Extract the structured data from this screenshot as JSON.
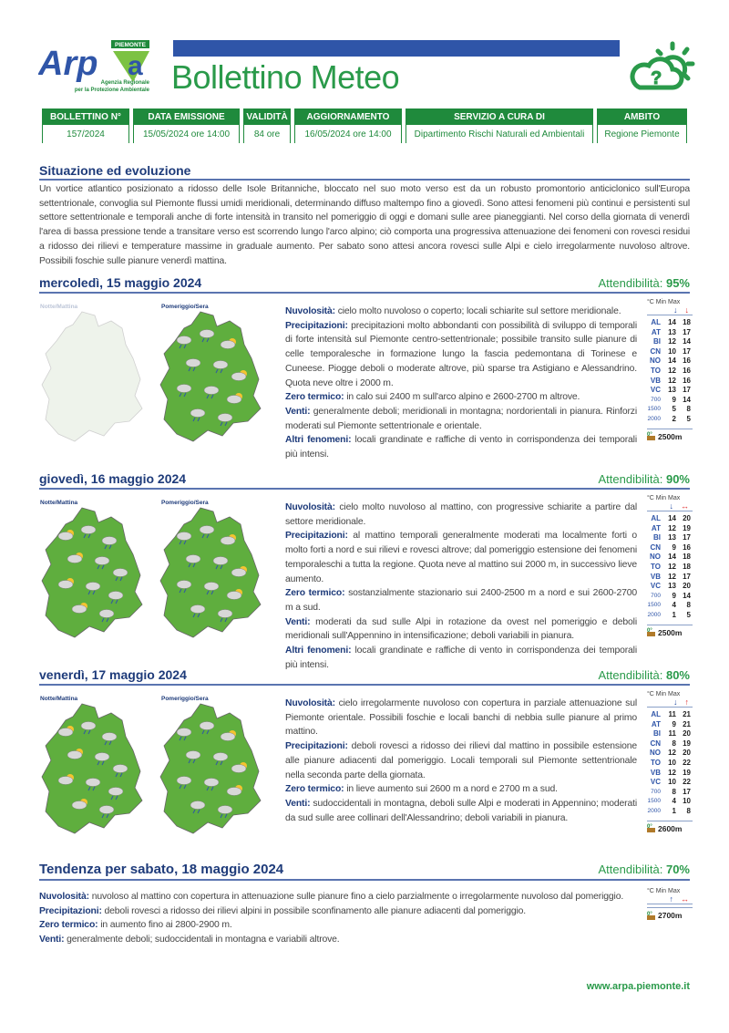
{
  "header": {
    "logo_text": "Arpa",
    "logo_region": "PIEMONTE",
    "logo_sub": "Agenzia Regionale per la Protezione Ambientale",
    "title": "Bollettino Meteo",
    "icon": "cloud-sun-question-icon"
  },
  "info": {
    "headers": [
      "BOLLETTINO N°",
      "DATA EMISSIONE",
      "VALIDITÀ",
      "AGGIORNAMENTO",
      "SERVIZIO A CURA DI",
      "AMBITO"
    ],
    "values": [
      "157/2024",
      "15/05/2024 ore 14:00",
      "84 ore",
      "16/05/2024 ore 14:00",
      "Dipartimento Rischi Naturali ed Ambientali",
      "Regione Piemonte"
    ]
  },
  "situation": {
    "title": "Situazione ed evoluzione",
    "text": "Un vortice atlantico posizionato a ridosso delle Isole Britanniche, bloccato nel suo moto verso est da un robusto promontorio anticiclonico sull'Europa settentrionale, convoglia sul Piemonte flussi umidi meridionali, determinando diffuso maltempo fino a giovedì. Sono attesi fenomeni più continui e persistenti sul settore settentrionale e temporali anche di forte intensità in transito nel pomeriggio di oggi e domani sulle aree pianeggianti. Nel corso della giornata di venerdì l'area di bassa pressione tende a transitare verso est scorrendo lungo l'arco alpino; ciò comporta una progressiva attenuazione dei fenomeni con rovesci residui a ridosso dei rilievi e temperature massime in graduale aumento. Per sabato sono attesi ancora rovesci sulle Alpi e cielo irregolarmente nuvoloso altrove. Possibili foschie sulle pianure venerdì mattina."
  },
  "temp_header": "°C Min Max",
  "attendibilita_label": "Attendibilità:",
  "map_labels": [
    "Notte/Mattina",
    "Pomeriggio/Sera"
  ],
  "days": [
    {
      "title": "mercoledì, 15 maggio 2024",
      "reliability": "95%",
      "morning_faded": true,
      "sections": [
        [
          "Nuvolosità:",
          "cielo molto nuvoloso o coperto; locali schiarite sul settore meridionale."
        ],
        [
          "Precipitazioni:",
          "precipitazioni molto abbondanti con possibilità di sviluppo di temporali di forte intensità sul Piemonte centro-settentrionale; possibile transito sulle pianure di celle temporalesche in formazione lungo la fascia pedemontana di Torinese e Cuneese. Piogge deboli o moderate altrove, più sparse tra Astigiano e Alessandrino. Quota neve oltre i 2000 m."
        ],
        [
          "Zero termico:",
          "in calo sui 2400 m sull'arco alpino e 2600-2700 m altrove."
        ],
        [
          "Venti:",
          "generalmente deboli; meridionali in montagna; nordorientali in pianura. Rinforzi moderati sul Piemonte settentrionale e orientale."
        ],
        [
          "Altri fenomeni:",
          "locali grandinate e raffiche di vento in corrispondenza dei temporali più intensi."
        ]
      ],
      "trend": {
        "min": "down",
        "max": "down"
      },
      "temps": [
        [
          "AL",
          "14",
          "18"
        ],
        [
          "AT",
          "13",
          "17"
        ],
        [
          "BI",
          "12",
          "14"
        ],
        [
          "CN",
          "10",
          "17"
        ],
        [
          "NO",
          "14",
          "16"
        ],
        [
          "TO",
          "12",
          "16"
        ],
        [
          "VB",
          "12",
          "16"
        ],
        [
          "VC",
          "13",
          "17"
        ],
        [
          "700",
          "9",
          "14"
        ],
        [
          "1500",
          "5",
          "8"
        ],
        [
          "2000",
          "2",
          "5"
        ]
      ],
      "zero": "2500m"
    },
    {
      "title": "giovedì, 16 maggio 2024",
      "reliability": "90%",
      "morning_faded": false,
      "sections": [
        [
          "Nuvolosità:",
          "cielo molto nuvoloso al mattino, con progressive schiarite a partire dal settore meridionale."
        ],
        [
          "Precipitazioni:",
          "al mattino temporali generalmente moderati ma localmente forti o molto forti a nord e sui rilievi e rovesci altrove; dal pomeriggio estensione dei fenomeni temporaleschi a tutta la regione. Quota neve al mattino sui 2000 m, in successivo lieve aumento."
        ],
        [
          "Zero termico:",
          "sostanzialmente stazionario sui 2400-2500 m a nord e sui 2600-2700 m a sud."
        ],
        [
          "Venti:",
          "moderati da sud sulle Alpi in rotazione da ovest nel pomeriggio e deboli meridionali sull'Appennino in intensificazione; deboli variabili in pianura."
        ],
        [
          "Altri fenomeni:",
          "locali grandinate e raffiche di vento in corrispondenza dei temporali più intensi."
        ]
      ],
      "trend": {
        "min": "down",
        "max": "stable"
      },
      "temps": [
        [
          "AL",
          "14",
          "20"
        ],
        [
          "AT",
          "12",
          "19"
        ],
        [
          "BI",
          "13",
          "17"
        ],
        [
          "CN",
          "9",
          "16"
        ],
        [
          "NO",
          "14",
          "18"
        ],
        [
          "TO",
          "12",
          "18"
        ],
        [
          "VB",
          "12",
          "17"
        ],
        [
          "VC",
          "13",
          "20"
        ],
        [
          "700",
          "9",
          "14"
        ],
        [
          "1500",
          "4",
          "8"
        ],
        [
          "2000",
          "1",
          "5"
        ]
      ],
      "zero": "2500m"
    },
    {
      "title": "venerdì, 17 maggio 2024",
      "reliability": "80%",
      "morning_faded": false,
      "sections": [
        [
          "Nuvolosità:",
          "cielo irregolarmente nuvoloso con copertura in parziale attenuazione sul Piemonte orientale. Possibili foschie e locali banchi di nebbia sulle pianure al primo mattino."
        ],
        [
          "Precipitazioni:",
          "deboli rovesci a ridosso dei rilievi dal mattino in possibile estensione alle pianure adiacenti dal pomeriggio. Locali temporali sul Piemonte settentrionale nella seconda parte della giornata."
        ],
        [
          "Zero termico:",
          "in lieve aumento sui 2600 m a nord e 2700 m a sud."
        ],
        [
          "Venti:",
          "sudoccidentali in montagna, deboli sulle Alpi e moderati in Appennino; moderati da sud sulle aree collinari dell'Alessandrino; deboli variabili in pianura."
        ]
      ],
      "trend": {
        "min": "down",
        "max": "up"
      },
      "temps": [
        [
          "AL",
          "11",
          "21"
        ],
        [
          "AT",
          "9",
          "21"
        ],
        [
          "BI",
          "11",
          "20"
        ],
        [
          "CN",
          "8",
          "19"
        ],
        [
          "NO",
          "12",
          "20"
        ],
        [
          "TO",
          "10",
          "22"
        ],
        [
          "VB",
          "12",
          "19"
        ],
        [
          "VC",
          "10",
          "22"
        ],
        [
          "700",
          "8",
          "17"
        ],
        [
          "1500",
          "4",
          "10"
        ],
        [
          "2000",
          "1",
          "8"
        ]
      ],
      "zero": "2600m"
    }
  ],
  "trend_day": {
    "title": "Tendenza per sabato, 18 maggio 2024",
    "reliability": "70%",
    "sections": [
      [
        "Nuvolosità:",
        "nuvoloso al mattino con copertura in attenuazione sulle pianure fino a cielo parzialmente o irregolarmente nuvoloso dal pomeriggio."
      ],
      [
        "Precipitazioni:",
        "deboli rovesci a ridosso dei rilievi alpini in possibile sconfinamento alle pianure adiacenti dal pomeriggio."
      ],
      [
        "Zero termico:",
        "in aumento fino ai 2800-2900 m."
      ],
      [
        "Venti:",
        "generalmente deboli; sudoccidentali in montagna e variabili altrove."
      ]
    ],
    "trend": {
      "min": "up",
      "max": "stable"
    },
    "zero": "2700m"
  },
  "footer": {
    "url": "www.arpa.piemonte.it"
  },
  "colors": {
    "green": "#1f8a3c",
    "blue": "#2f55a8",
    "title_blue": "#1e3b7a",
    "min_arrow": "#2f55a8",
    "max_arrow": "#e03030"
  }
}
